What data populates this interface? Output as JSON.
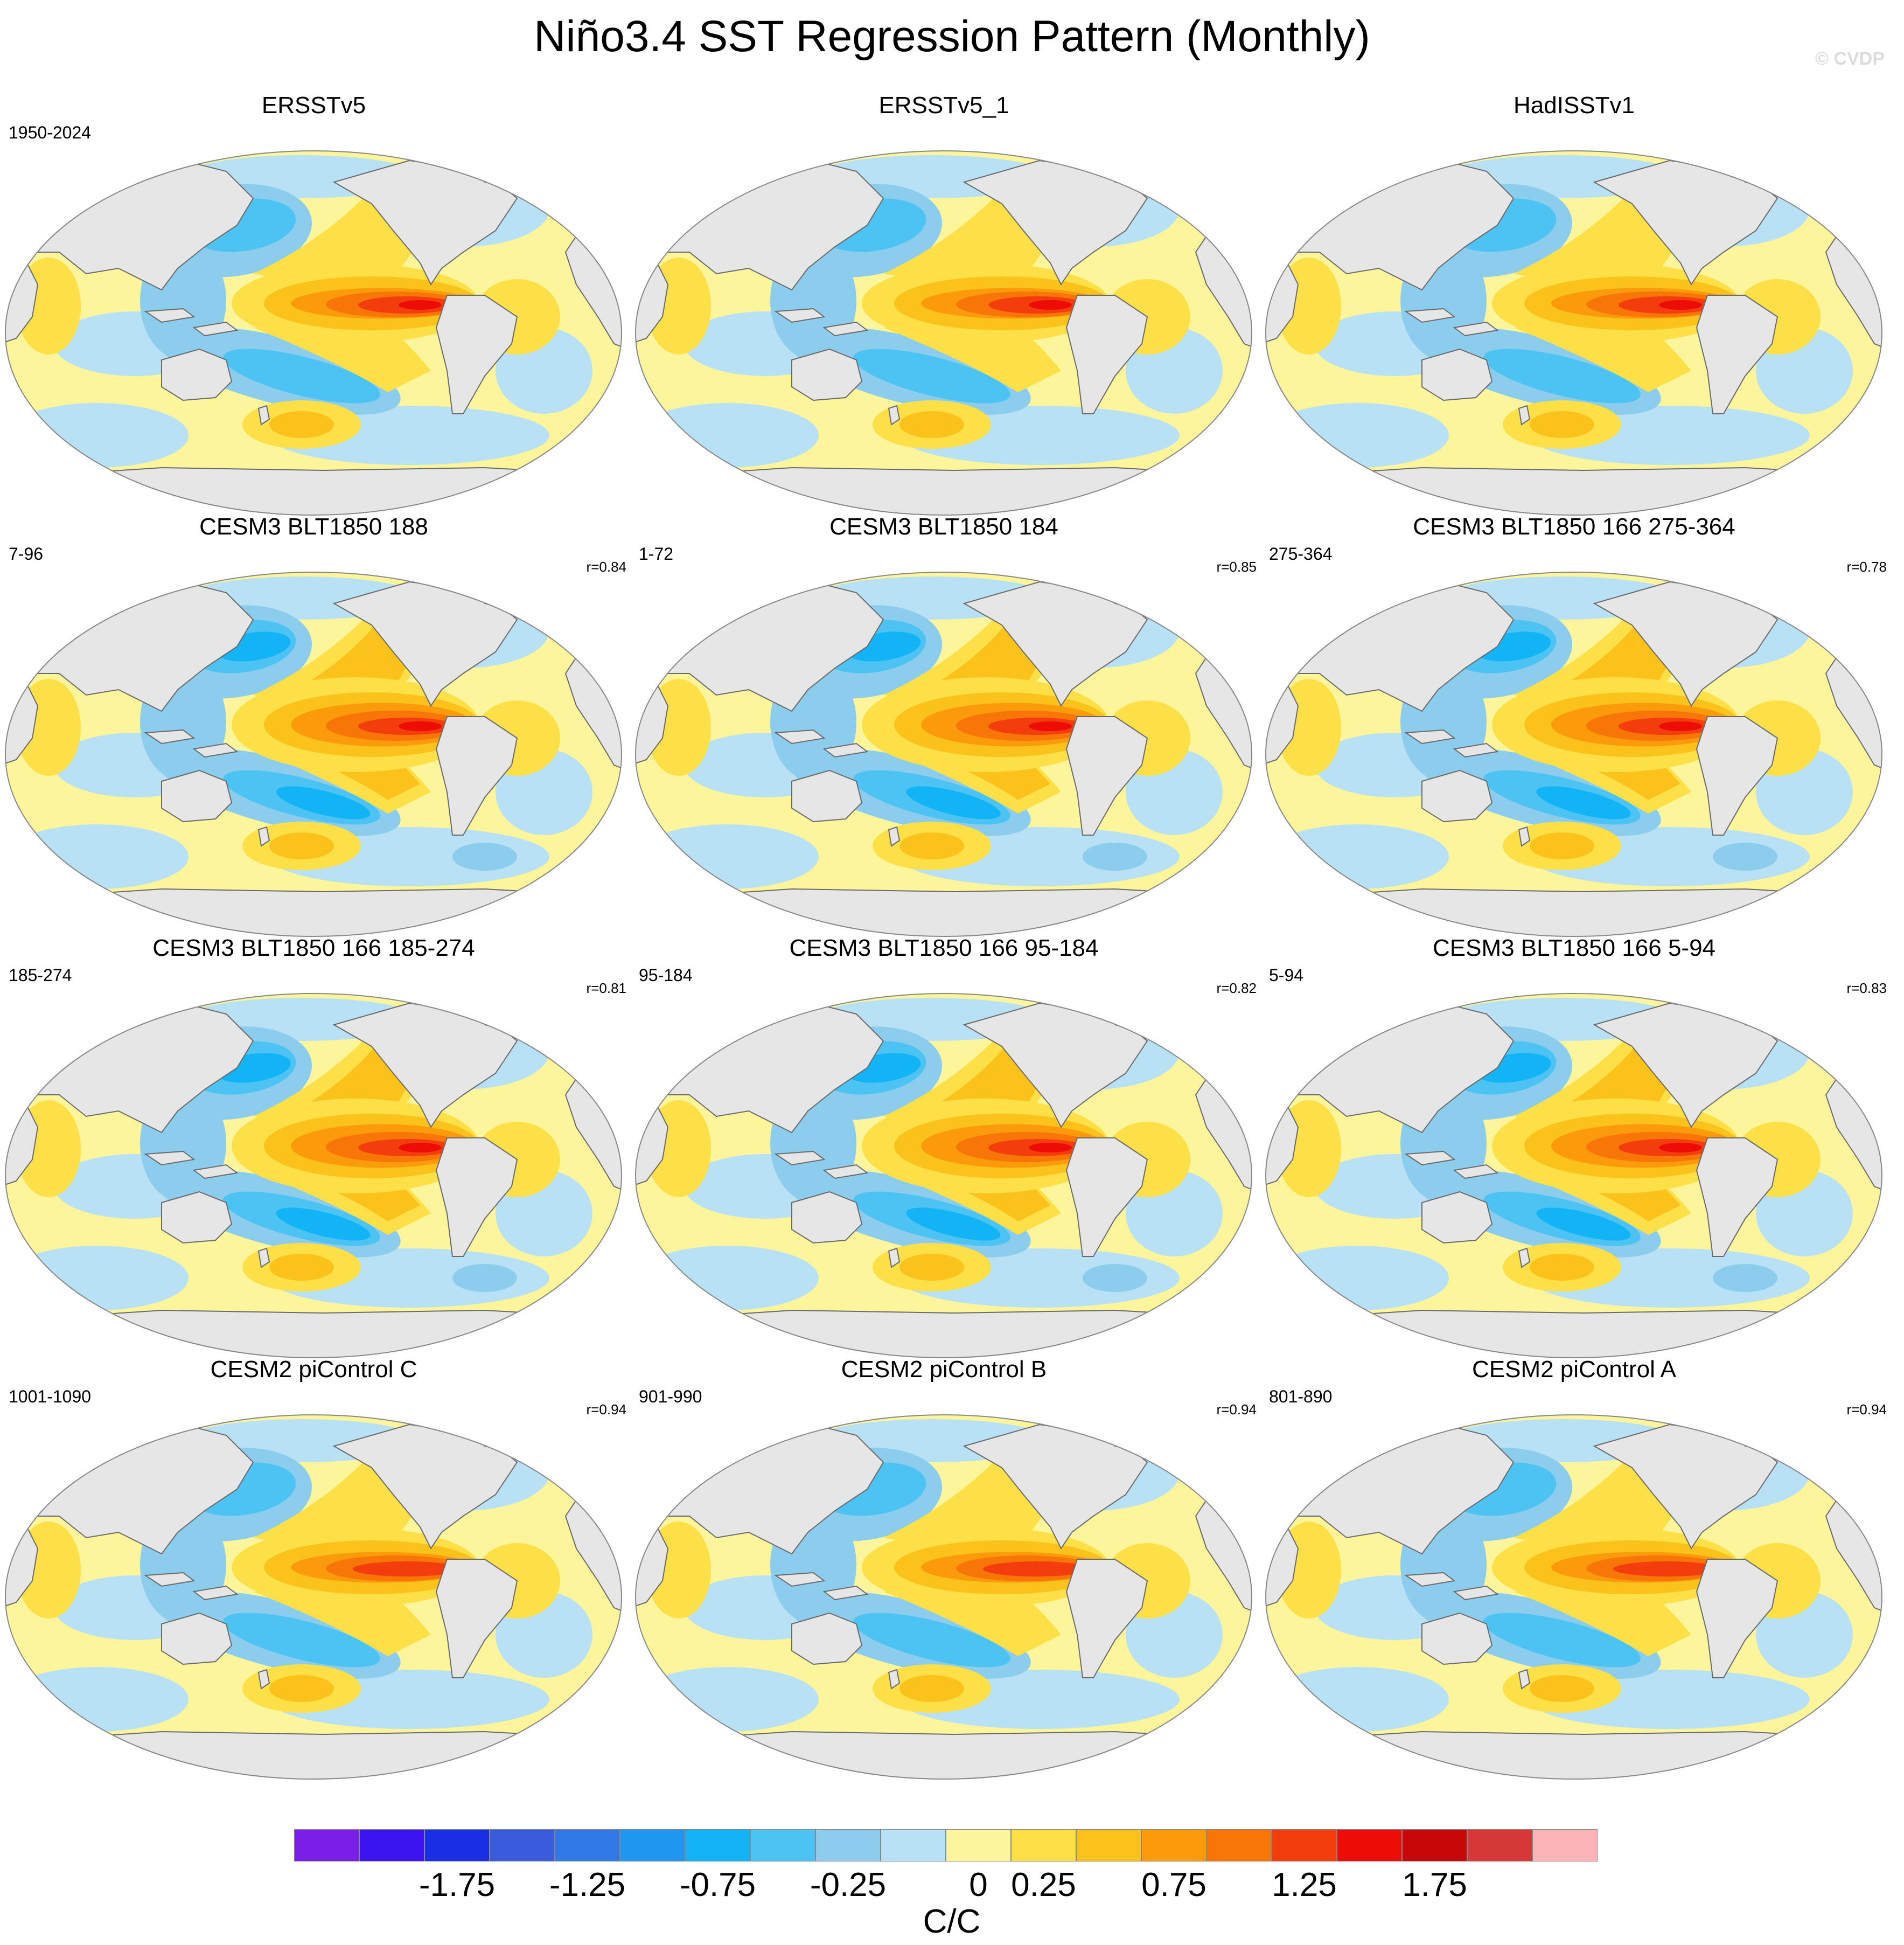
{
  "title": "Niño3.4 SST Regression Pattern (Monthly)",
  "copyright": "© CVDP",
  "panels": [
    {
      "title": "ERSSTv5",
      "period": "1950-2024",
      "corr": "",
      "variant": "obs"
    },
    {
      "title": "ERSSTv5_1",
      "period": "",
      "corr": "",
      "variant": "obs"
    },
    {
      "title": "HadISSTv1",
      "period": "",
      "corr": "",
      "variant": "obs"
    },
    {
      "title": "CESM3 BLT1850 188",
      "period": "7-96",
      "corr": "r=0.84",
      "variant": "strong"
    },
    {
      "title": "CESM3 BLT1850 184",
      "period": "1-72",
      "corr": "r=0.85",
      "variant": "strong"
    },
    {
      "title": "CESM3 BLT1850 166 275-364",
      "period": "275-364",
      "corr": "r=0.78",
      "variant": "strong"
    },
    {
      "title": "CESM3 BLT1850 166 185-274",
      "period": "185-274",
      "corr": "r=0.81",
      "variant": "strong"
    },
    {
      "title": "CESM3 BLT1850 166 95-184",
      "period": "95-184",
      "corr": "r=0.82",
      "variant": "strong"
    },
    {
      "title": "CESM3 BLT1850 166 5-94",
      "period": "5-94",
      "corr": "r=0.83",
      "variant": "strong"
    },
    {
      "title": "CESM2 piControl C",
      "period": "1001-1090",
      "corr": "r=0.94",
      "variant": "pi"
    },
    {
      "title": "CESM2 piControl B",
      "period": "901-990",
      "corr": "r=0.94",
      "variant": "pi"
    },
    {
      "title": "CESM2 piControl A",
      "period": "801-890",
      "corr": "r=0.94",
      "variant": "pi"
    }
  ],
  "colorbar": {
    "units": "C/C",
    "labels": [
      "-1.75",
      "-1.25",
      "-0.75",
      "-0.25",
      "0",
      "0.25",
      "0.75",
      "1.25",
      "1.75"
    ],
    "colors": [
      "#7b1ee8",
      "#3c14f0",
      "#1a2ee6",
      "#3a5cdc",
      "#2f78e6",
      "#1f96f0",
      "#13b4f5",
      "#4cc3f2",
      "#8ccdee",
      "#b9e1f5",
      "#fcf59c",
      "#fde048",
      "#fcc21c",
      "#fb9b0c",
      "#f87508",
      "#f43d0d",
      "#ee0c06",
      "#c80808",
      "#d63838",
      "#fcb4b8"
    ]
  },
  "style": {
    "land": "#e6e6e6",
    "coast": "#6a6a6a",
    "ocean_base": "#fcf59c",
    "weak_neg": "#b9e1f5",
    "mid_neg": "#8ccdee",
    "neg": "#4cc3f2",
    "strong_neg": "#13b4f5",
    "pos1": "#fde048",
    "pos2": "#fcc21c",
    "pos3": "#fb9b0c",
    "pos4": "#f87508",
    "pos5": "#f43d0d",
    "pos6": "#ee0c06"
  }
}
